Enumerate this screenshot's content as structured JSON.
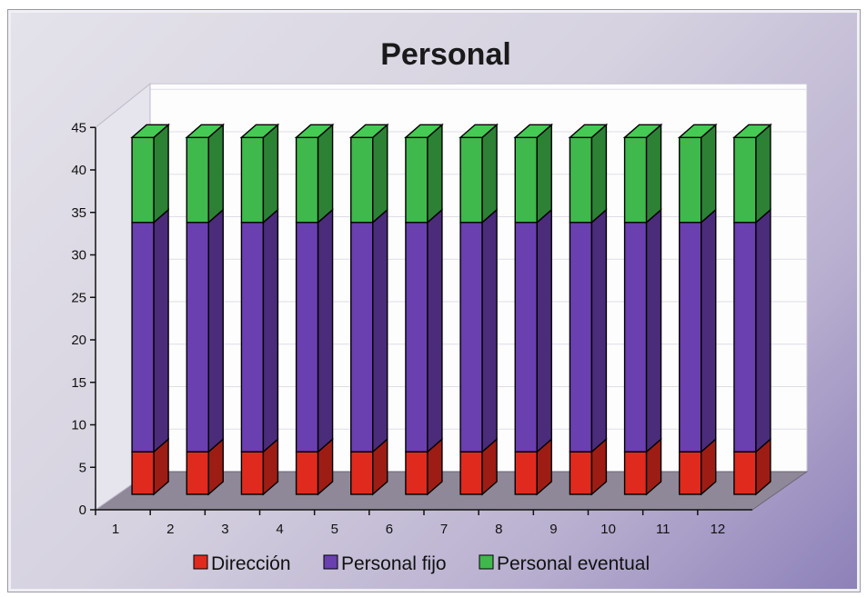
{
  "chart_data": {
    "type": "bar",
    "stacked": true,
    "three_d": true,
    "title": "Personal",
    "categories": [
      "1",
      "2",
      "3",
      "4",
      "5",
      "6",
      "7",
      "8",
      "9",
      "10",
      "11",
      "12"
    ],
    "series": [
      {
        "name": "Dirección",
        "values": [
          5,
          5,
          5,
          5,
          5,
          5,
          5,
          5,
          5,
          5,
          5,
          5
        ],
        "color": "#e02a1e"
      },
      {
        "name": "Personal fijo",
        "values": [
          27,
          27,
          27,
          27,
          27,
          27,
          27,
          27,
          27,
          27,
          27,
          27
        ],
        "color": "#6a3fb0"
      },
      {
        "name": "Personal eventual",
        "values": [
          10,
          10,
          10,
          10,
          10,
          10,
          10,
          10,
          10,
          10,
          10,
          10
        ],
        "color": "#3fb84c"
      }
    ],
    "ylim": [
      0,
      45
    ],
    "yticks": [
      "0",
      "5",
      "10",
      "15",
      "20",
      "25",
      "30",
      "35",
      "40",
      "45"
    ],
    "grid": true,
    "legend_position": "bottom"
  }
}
